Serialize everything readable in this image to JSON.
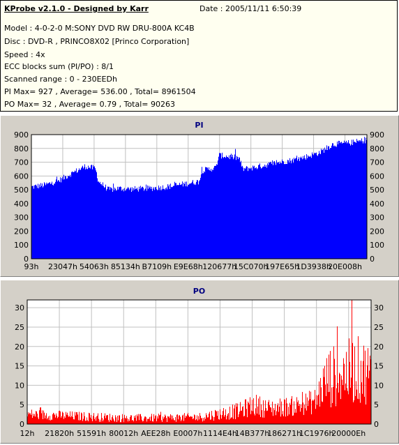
{
  "header": {
    "title": "KProbe v2.1.0 - Designed by Karr",
    "date": "Date : 2005/11/11 6:50:39",
    "lines": [
      "Model : 4-0-2-0 M:SONY    DVD RW DRU-800A  KC4B",
      "Disc : DVD-R , PRINCO8X02 [Princo Corporation]",
      "Speed : 4x",
      "ECC blocks sum (PI/PO) : 8/1",
      "Scanned range : 0 - 230EEDh",
      "PI Max= 927 , Average= 536.00 , Total= 8961504",
      "PO Max= 32 , Average= 0.79 , Total= 90263"
    ]
  },
  "colors": {
    "pi_fill": "#0000ff",
    "po_fill": "#ff0000",
    "plot_bg": "#ffffff",
    "grid": "#c0c0c0",
    "panel_bg": "#d4d0c8",
    "title_text": "#000080"
  },
  "chart_data": [
    {
      "type": "bar",
      "title": "PI",
      "ylim": [
        0,
        900
      ],
      "yticks": [
        "900",
        "800",
        "700",
        "600",
        "500",
        "400",
        "300",
        "200",
        "100",
        "0"
      ],
      "xtick_labels": [
        "93h",
        "23047h",
        "54063h",
        "85134h",
        "B7109h",
        "E9E68h",
        "120677h",
        "15C070h",
        "197E65h",
        "1D3938h",
        "20E008h"
      ],
      "grid": true,
      "profile": {
        "x": [
          0,
          0.04,
          0.08,
          0.12,
          0.16,
          0.19,
          0.2,
          0.23,
          0.26,
          0.3,
          0.35,
          0.4,
          0.45,
          0.5,
          0.51,
          0.55,
          0.56,
          0.62,
          0.63,
          0.66,
          0.7,
          0.74,
          0.78,
          0.82,
          0.86,
          0.88,
          0.9,
          0.95,
          1.0
        ],
        "y": [
          520,
          535,
          565,
          620,
          670,
          655,
          560,
          500,
          510,
          505,
          510,
          520,
          540,
          560,
          640,
          660,
          750,
          730,
          650,
          660,
          680,
          700,
          715,
          740,
          770,
          800,
          830,
          840,
          860
        ]
      },
      "noise": 22,
      "spike": 45,
      "max": 927
    },
    {
      "type": "bar",
      "title": "PO",
      "ylim": [
        0,
        32
      ],
      "yticks": [
        "30",
        "25",
        "20",
        "15",
        "10",
        "5",
        "0"
      ],
      "xtick_labels": [
        "12h",
        "21820h",
        "51591h",
        "80012h",
        "AEE28h",
        "E0007h",
        "1114E4h",
        "14B377h",
        "186271h",
        "1C1976h",
        "20000Eh"
      ],
      "grid": true,
      "profile": {
        "x": [
          0,
          0.1,
          0.2,
          0.3,
          0.4,
          0.5,
          0.55,
          0.62,
          0.66,
          0.7,
          0.76,
          0.8,
          0.84,
          0.86,
          0.88,
          0.92,
          0.96,
          1.0
        ],
        "y": [
          2.5,
          2.2,
          1.8,
          1.5,
          1.6,
          1.8,
          2.5,
          3.5,
          5.0,
          4.0,
          4.5,
          5.0,
          6.0,
          10,
          12,
          13,
          14,
          13
        ],
        "noise_scale": [
          1.5,
          1.3,
          1.2,
          1.1,
          1.1,
          1.2,
          1.6,
          2.2,
          3.0,
          2.5,
          2.6,
          2.8,
          3.5,
          6.0,
          8.0,
          8.5,
          9.0,
          8.0
        ]
      },
      "max": 32
    }
  ]
}
